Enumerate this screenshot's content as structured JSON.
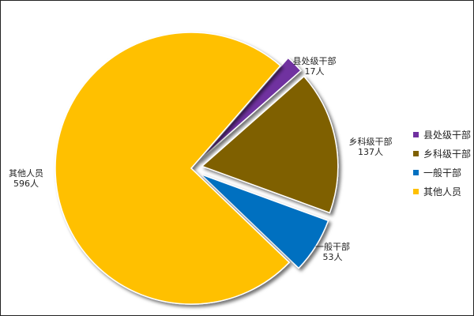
{
  "chart_data": {
    "type": "pie",
    "title": "",
    "slices": [
      {
        "label": "县处级干部",
        "value": 17,
        "data_label": "17人",
        "color": "#7030A0",
        "exploded": true
      },
      {
        "label": "乡科级干部",
        "value": 137,
        "data_label": "137人",
        "color": "#7F6000",
        "exploded": true
      },
      {
        "label": "一般干部",
        "value": 53,
        "data_label": "53人",
        "color": "#0070C0",
        "exploded": true
      },
      {
        "label": "其他人员",
        "value": 596,
        "data_label": "596人",
        "color": "#FFC000",
        "exploded": false
      }
    ],
    "legend_position": "right"
  }
}
